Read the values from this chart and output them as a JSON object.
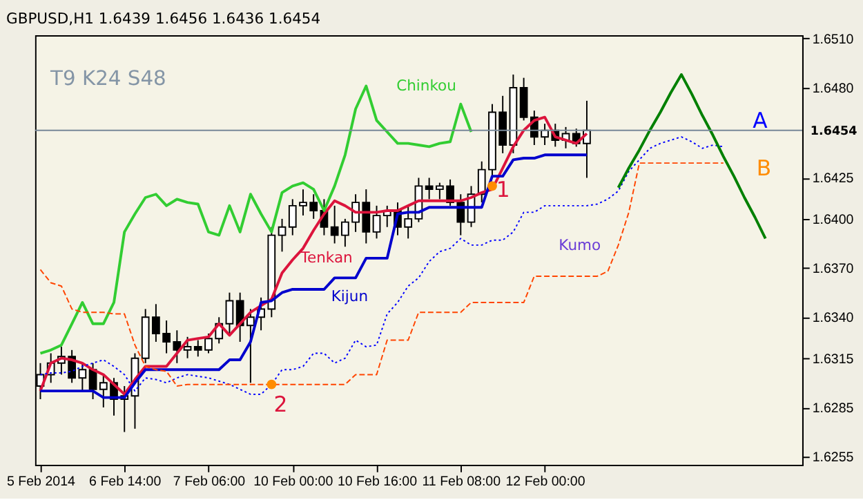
{
  "chart_data": {
    "type": "candlestick",
    "title": "GBPUSD,H1 1.6439 1.6456 1.6436 1.6454",
    "categories": [
      "5 Feb 2014",
      null,
      null,
      null,
      null,
      null,
      null,
      null,
      "6 Feb 14:00",
      null,
      null,
      null,
      null,
      null,
      null,
      null,
      "7 Feb 06:00",
      null,
      null,
      null,
      null,
      null,
      null,
      null,
      "10 Feb 00:00",
      null,
      null,
      null,
      null,
      null,
      null,
      null,
      "10 Feb 16:00",
      null,
      null,
      null,
      null,
      null,
      null,
      null,
      "11 Feb 08:00",
      null,
      null,
      null,
      null,
      null,
      null,
      null,
      "12 Feb 00:00",
      null,
      null,
      null,
      null,
      null,
      null,
      null,
      null,
      null,
      null,
      null,
      null,
      null,
      null,
      null,
      null,
      null,
      null,
      null,
      null,
      null,
      null,
      null,
      null
    ],
    "ohlc": [
      [
        1.6298,
        1.6312,
        1.629,
        1.6305
      ],
      [
        1.6305,
        1.6318,
        1.63,
        1.6312
      ],
      [
        1.6312,
        1.6322,
        1.6305,
        1.6316
      ],
      [
        1.6316,
        1.632,
        1.63,
        1.6303
      ],
      [
        1.6303,
        1.6312,
        1.6295,
        1.6308
      ],
      [
        1.6308,
        1.6312,
        1.629,
        1.6296
      ],
      [
        1.6296,
        1.6305,
        1.6285,
        1.63
      ],
      [
        1.63,
        1.6303,
        1.628,
        1.629
      ],
      [
        1.629,
        1.6298,
        1.627,
        1.6292
      ],
      [
        1.6292,
        1.6318,
        1.6272,
        1.6315
      ],
      [
        1.6315,
        1.6345,
        1.6312,
        1.634
      ],
      [
        1.634,
        1.6348,
        1.6325,
        1.633
      ],
      [
        1.633,
        1.6338,
        1.6318,
        1.6325
      ],
      [
        1.6325,
        1.6332,
        1.6312,
        1.632
      ],
      [
        1.632,
        1.6328,
        1.6315,
        1.6322
      ],
      [
        1.6322,
        1.6326,
        1.6316,
        1.632
      ],
      [
        1.632,
        1.633,
        1.6318,
        1.6327
      ],
      [
        1.6327,
        1.634,
        1.6324,
        1.6336
      ],
      [
        1.6336,
        1.6355,
        1.633,
        1.635
      ],
      [
        1.635,
        1.6355,
        1.6325,
        1.6335
      ],
      [
        1.6335,
        1.6345,
        1.63,
        1.634
      ],
      [
        1.634,
        1.6352,
        1.6332,
        1.6345
      ],
      [
        1.6345,
        1.6395,
        1.634,
        1.639
      ],
      [
        1.639,
        1.64,
        1.638,
        1.6395
      ],
      [
        1.6395,
        1.6412,
        1.639,
        1.6408
      ],
      [
        1.6408,
        1.6418,
        1.6402,
        1.641
      ],
      [
        1.641,
        1.6415,
        1.64,
        1.6405
      ],
      [
        1.6405,
        1.6412,
        1.639,
        1.6395
      ],
      [
        1.6395,
        1.6408,
        1.6385,
        1.639
      ],
      [
        1.639,
        1.64,
        1.6383,
        1.6398
      ],
      [
        1.6398,
        1.6415,
        1.6392,
        1.641
      ],
      [
        1.641,
        1.6418,
        1.6385,
        1.6392
      ],
      [
        1.6392,
        1.6408,
        1.6388,
        1.6402
      ],
      [
        1.6402,
        1.6408,
        1.6395,
        1.6405
      ],
      [
        1.6405,
        1.641,
        1.639,
        1.6395
      ],
      [
        1.6395,
        1.6408,
        1.6388,
        1.64
      ],
      [
        1.64,
        1.6425,
        1.6398,
        1.642
      ],
      [
        1.642,
        1.6425,
        1.6412,
        1.6418
      ],
      [
        1.6418,
        1.6422,
        1.6412,
        1.642
      ],
      [
        1.642,
        1.6424,
        1.6408,
        1.641
      ],
      [
        1.641,
        1.6415,
        1.639,
        1.6398
      ],
      [
        1.6398,
        1.642,
        1.6395,
        1.6415
      ],
      [
        1.6415,
        1.6435,
        1.641,
        1.643
      ],
      [
        1.643,
        1.647,
        1.6425,
        1.6465
      ],
      [
        1.6465,
        1.6475,
        1.644,
        1.6445
      ],
      [
        1.6445,
        1.6488,
        1.644,
        1.648
      ],
      [
        1.648,
        1.6486,
        1.646,
        1.6462
      ],
      [
        1.6462,
        1.6466,
        1.6445,
        1.645
      ],
      [
        1.645,
        1.6458,
        1.6445,
        1.6454
      ],
      [
        1.6454,
        1.6458,
        1.6444,
        1.6448
      ],
      [
        1.6448,
        1.6456,
        1.6443,
        1.6452
      ],
      [
        1.6452,
        1.6455,
        1.6444,
        1.6446
      ],
      [
        1.6446,
        1.6472,
        1.6425,
        1.6454
      ],
      null,
      null,
      null,
      null,
      null,
      null,
      null,
      null,
      null,
      null,
      null,
      null,
      null,
      null,
      null,
      null,
      null,
      null,
      null,
      null
    ],
    "series": [
      {
        "type": "line",
        "color": "#dc143c",
        "values": [
          1.6295,
          1.6312,
          1.6315,
          1.6314,
          1.6312,
          1.6308,
          1.6305,
          1.6299,
          1.6293,
          1.6302,
          1.631,
          1.631,
          1.631,
          1.6318,
          1.6326,
          1.6327,
          1.6328,
          1.6336,
          1.6329,
          1.6336,
          1.6343,
          1.6347,
          1.6351,
          1.6367,
          1.6375,
          1.6382,
          1.6393,
          1.6403,
          1.6411,
          1.6408,
          1.6404,
          1.6404,
          1.6404,
          1.6405,
          1.6405,
          1.6408,
          1.6411,
          1.6411,
          1.6411,
          1.6411,
          1.6411,
          1.6413,
          1.6416,
          1.6418,
          1.6431,
          1.6444,
          1.6454,
          1.646,
          1.6462,
          1.645,
          1.6448,
          1.6446,
          1.6452,
          null,
          null,
          null,
          null,
          null,
          null,
          null,
          null,
          null,
          null,
          null,
          null,
          null,
          null,
          null,
          null,
          null,
          null,
          null,
          null
        ]
      },
      {
        "type": "line",
        "color": "#0000cd",
        "values": [
          1.6295,
          1.6295,
          1.6295,
          1.6295,
          1.6295,
          1.6295,
          1.6291,
          1.6291,
          1.6291,
          1.63,
          1.6308,
          1.6308,
          1.6308,
          1.6308,
          1.6308,
          1.6308,
          1.6308,
          1.6308,
          1.6314,
          1.6314,
          1.6325,
          1.6349,
          1.635,
          1.6355,
          1.6357,
          1.6357,
          1.6357,
          1.6357,
          1.6364,
          1.6364,
          1.6364,
          1.6376,
          1.6376,
          1.6376,
          1.6403,
          1.6404,
          1.6404,
          1.6407,
          1.6407,
          1.6407,
          1.6407,
          1.6407,
          1.6407,
          1.6426,
          1.6426,
          1.6436,
          1.6437,
          1.6437,
          1.6439,
          1.6439,
          1.6439,
          1.6439,
          1.6439,
          null,
          null,
          null,
          null,
          null,
          null,
          null,
          null,
          null,
          null,
          null,
          null,
          null,
          null,
          null,
          null,
          null,
          null,
          null,
          null
        ]
      },
      {
        "type": "line",
        "color": "#32cd32",
        "values": [
          1.6318,
          1.632,
          1.6323,
          1.6336,
          1.6349,
          1.6336,
          1.6336,
          1.6349,
          1.6392,
          1.6403,
          1.6413,
          1.6415,
          1.6408,
          1.6412,
          1.641,
          1.6409,
          1.6392,
          1.639,
          1.6408,
          1.6392,
          1.6415,
          1.6403,
          1.6392,
          1.6416,
          1.642,
          1.6422,
          1.6418,
          1.6405,
          1.642,
          1.6439,
          1.6467,
          1.6481,
          1.646,
          1.6453,
          1.6446,
          1.6446,
          1.6445,
          1.6444,
          1.6446,
          1.6447,
          1.647,
          1.6453,
          null,
          null,
          null,
          null,
          null,
          null,
          null,
          null,
          null,
          null,
          null,
          null,
          null,
          null,
          null,
          null,
          null,
          null,
          null,
          null,
          null,
          null,
          null,
          null,
          null,
          null,
          null,
          null,
          null,
          null,
          null
        ]
      },
      {
        "type": "line",
        "color": "#0000ff",
        "line_style": "dotted",
        "values": [
          1.6305,
          1.6306,
          1.6306,
          1.6307,
          1.631,
          1.6312,
          1.6314,
          1.631,
          1.6305,
          1.6295,
          1.6303,
          1.6302,
          1.63,
          1.6303,
          1.6305,
          1.6304,
          1.6303,
          1.6301,
          1.6299,
          1.6296,
          1.6293,
          1.6293,
          1.6299,
          1.6308,
          1.6308,
          1.631,
          1.6318,
          1.6318,
          1.6312,
          1.6315,
          1.6326,
          1.6322,
          1.6323,
          1.6342,
          1.6349,
          1.6359,
          1.6364,
          1.6374,
          1.638,
          1.6382,
          1.6388,
          1.6384,
          1.6384,
          1.6387,
          1.6387,
          1.6392,
          1.6404,
          1.6404,
          1.6408,
          1.6408,
          1.6408,
          1.6408,
          1.6408,
          1.6409,
          1.6412,
          1.6417,
          1.6429,
          1.6436,
          1.6443,
          1.6446,
          1.6448,
          1.645,
          1.6447,
          1.6443,
          1.6445,
          1.6444,
          null,
          null,
          null,
          null,
          null,
          null,
          null
        ]
      },
      {
        "type": "line",
        "color": "#ff4500",
        "line_style": "dashed",
        "values": [
          1.6369,
          1.6361,
          1.6359,
          1.6345,
          1.6343,
          1.6343,
          1.6343,
          1.6342,
          1.6342,
          1.6323,
          1.631,
          1.6308,
          1.6307,
          1.6298,
          1.6299,
          1.6299,
          1.6299,
          1.6299,
          1.6299,
          1.6299,
          1.6299,
          1.6299,
          1.6299,
          1.6299,
          1.6299,
          1.6299,
          1.6299,
          1.6299,
          1.6299,
          1.6299,
          1.6305,
          1.6305,
          1.6305,
          1.6326,
          1.6326,
          1.6326,
          1.6343,
          1.6343,
          1.6343,
          1.6343,
          1.6343,
          1.6349,
          1.6349,
          1.6349,
          1.6349,
          1.6349,
          1.6349,
          1.6365,
          1.6365,
          1.6365,
          1.6365,
          1.6365,
          1.6365,
          1.6365,
          1.6368,
          1.6384,
          1.6404,
          1.6434,
          1.6434,
          1.6434,
          1.6434,
          1.6434,
          1.6434,
          1.6434,
          1.6434,
          1.6434,
          null,
          null,
          null,
          null,
          null,
          null,
          null
        ]
      },
      {
        "type": "line",
        "color": "#008000",
        "values": [
          null,
          null,
          null,
          null,
          null,
          null,
          null,
          null,
          null,
          null,
          null,
          null,
          null,
          null,
          null,
          null,
          null,
          null,
          null,
          null,
          null,
          null,
          null,
          null,
          null,
          null,
          null,
          null,
          null,
          null,
          null,
          null,
          null,
          null,
          null,
          null,
          null,
          null,
          null,
          null,
          null,
          null,
          null,
          null,
          null,
          null,
          null,
          null,
          null,
          null,
          null,
          null,
          null,
          null,
          null,
          1.6419,
          1.6431,
          1.6442,
          1.6454,
          1.6465,
          1.6477,
          1.6488,
          1.6476,
          1.6463,
          1.6451,
          1.6438,
          1.6426,
          1.6413,
          1.6401,
          1.6388,
          null,
          null,
          null
        ]
      },
      {
        "type": "scatter",
        "color": "#ff8c00",
        "marker": "circle",
        "values": [
          null,
          null,
          null,
          null,
          null,
          null,
          null,
          null,
          null,
          null,
          null,
          null,
          null,
          null,
          null,
          null,
          null,
          null,
          null,
          null,
          null,
          null,
          1.6299,
          null,
          null,
          null,
          null,
          null,
          null,
          null,
          null,
          null,
          null,
          null,
          null,
          null,
          null,
          null,
          null,
          null,
          null,
          null,
          null,
          1.642,
          null,
          null,
          null,
          null,
          null,
          null,
          null,
          null,
          null,
          null,
          null,
          null,
          null,
          null,
          null,
          null,
          null,
          null,
          null,
          null,
          null,
          null,
          null,
          null,
          null,
          null,
          null,
          null,
          null
        ]
      }
    ],
    "ylim": [
      1.625,
      1.6512
    ],
    "yticks": [
      {
        "value": 1.651,
        "label": "1.6510"
      },
      {
        "value": 1.648,
        "label": "1.6480"
      },
      1.6425,
      {
        "value": 1.64,
        "label": "1.6400"
      },
      {
        "value": 1.637,
        "label": "1.6370"
      },
      {
        "value": 1.634,
        "label": "1.6340"
      },
      1.6315,
      1.6285,
      1.6255
    ],
    "ref_lines": [
      {
        "axis": "y",
        "value": 1.6454,
        "label": "1.6454",
        "color": "#778899"
      }
    ],
    "grid": false,
    "annotations": [
      "T9 K24 S48",
      "Chinkou",
      "Tenkan",
      "Kijun",
      "Kumo",
      "1",
      "2",
      "A",
      "B"
    ]
  }
}
